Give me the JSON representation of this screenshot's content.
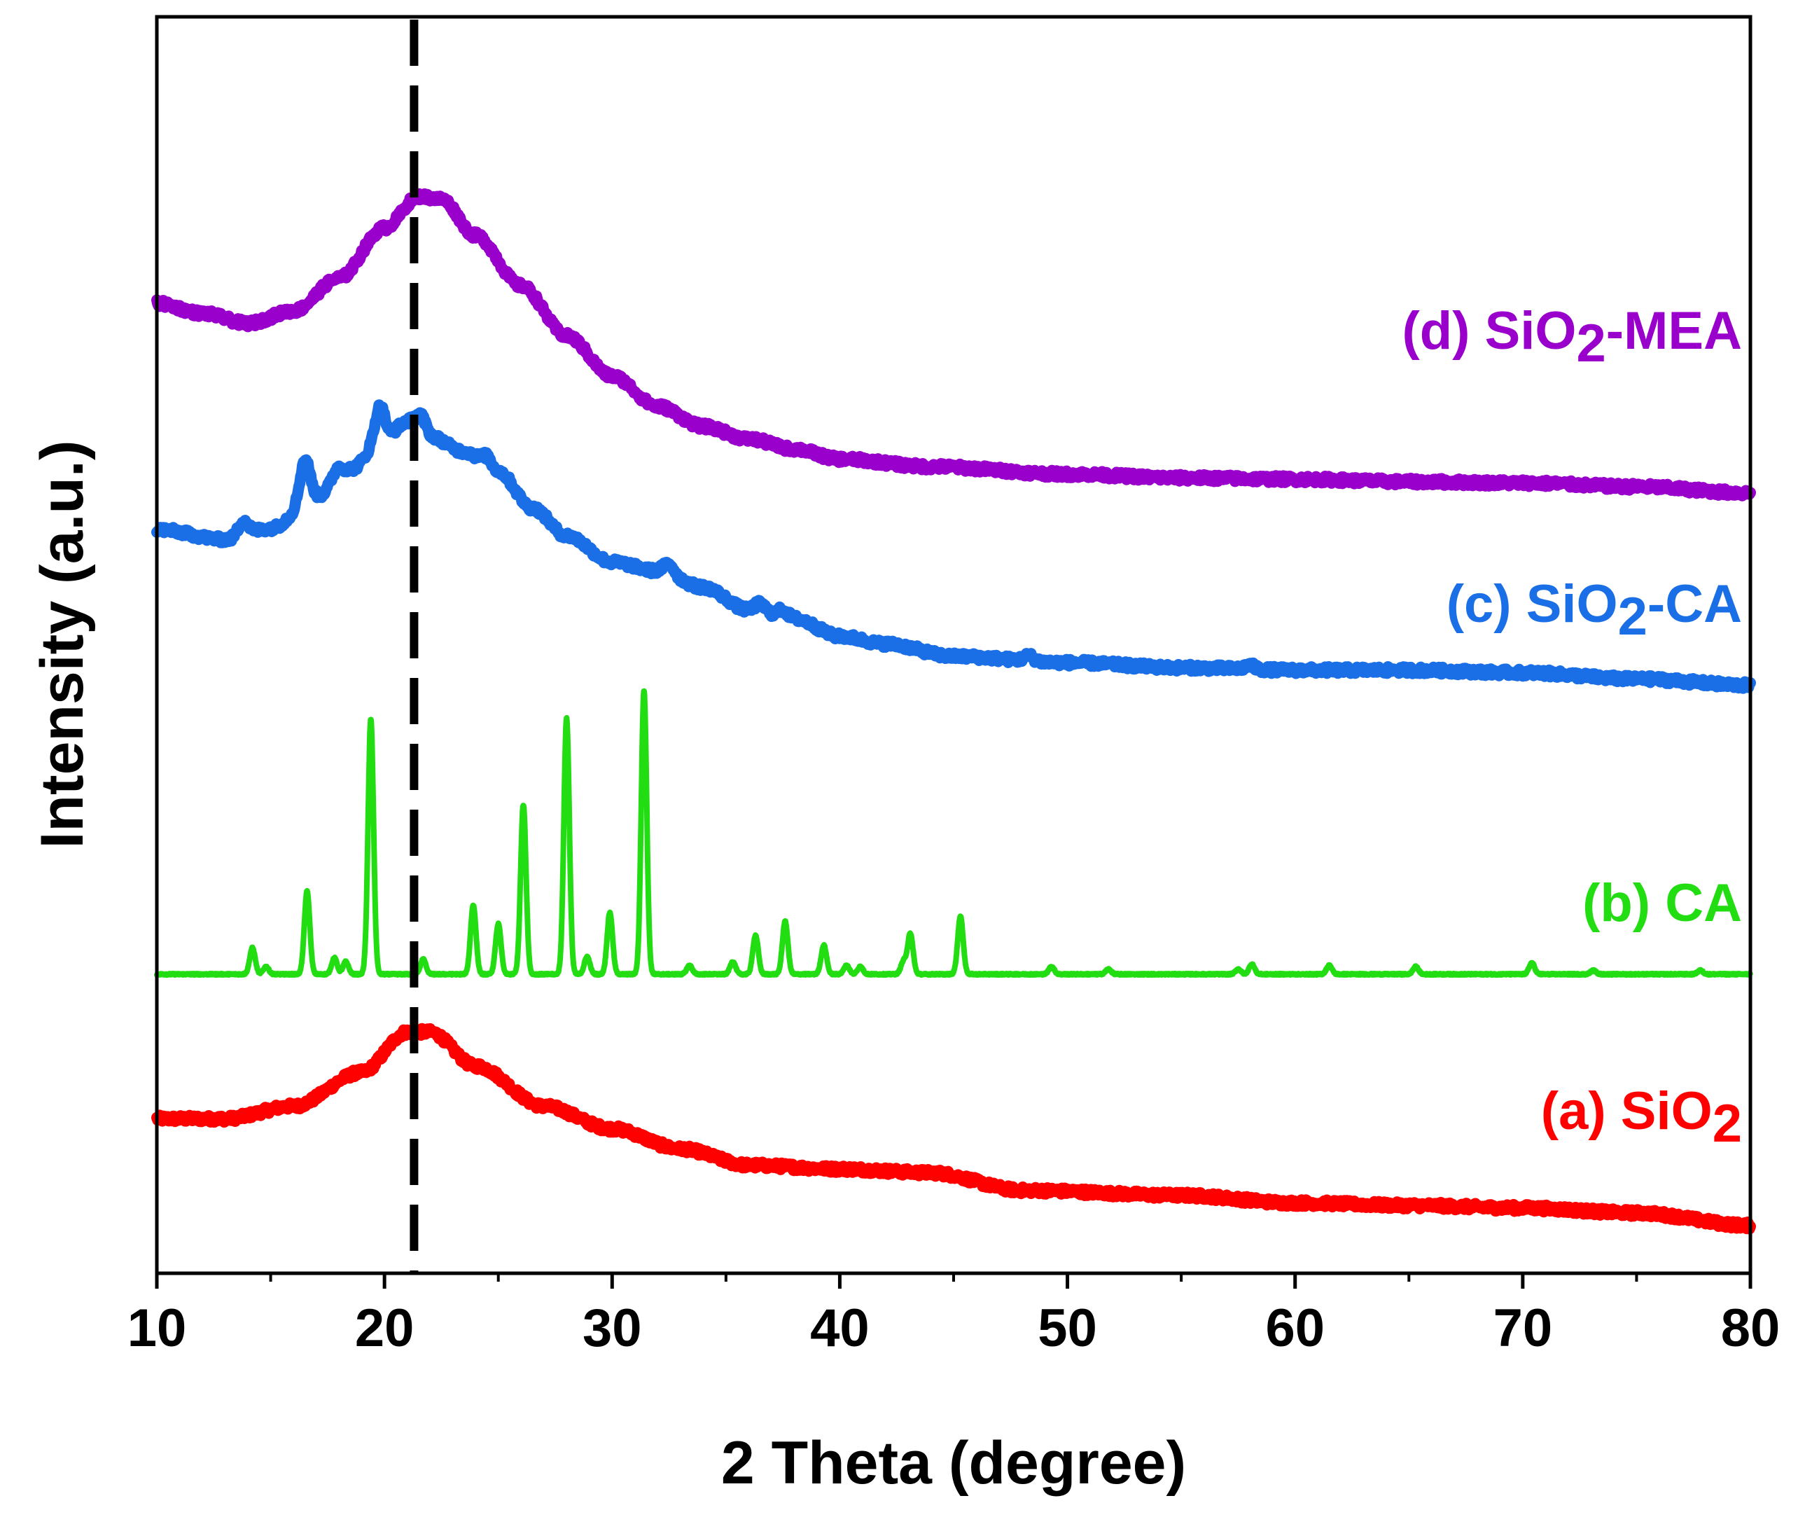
{
  "chart_data": {
    "type": "line",
    "title": "",
    "xlabel": "2 Theta (degree)",
    "ylabel": "Intensity (a.u.)",
    "xlim": [
      10,
      80
    ],
    "ylim": [
      0,
      100
    ],
    "y_ticks_shown": false,
    "grid": false,
    "xticks": [
      10,
      20,
      30,
      40,
      50,
      60,
      70,
      80
    ],
    "xtick_labels": [
      "10",
      "20",
      "30",
      "40",
      "50",
      "60",
      "70",
      "80"
    ],
    "reference_line": {
      "x": 21.3,
      "style": "dashed",
      "color": "#000000"
    },
    "series": [
      {
        "id": "a",
        "name": "(a) SiO",
        "subscript": "2",
        "suffix": "",
        "color": "#ff0000",
        "kind": "broad",
        "baseline": [
          [
            10,
            12.3
          ],
          [
            13,
            12.3
          ],
          [
            16,
            13.3
          ],
          [
            19,
            16.0
          ],
          [
            21,
            19.2
          ],
          [
            22,
            19.2
          ],
          [
            24,
            16.5
          ],
          [
            27,
            13.3
          ],
          [
            30,
            11.5
          ],
          [
            33,
            9.9
          ],
          [
            36,
            8.6
          ],
          [
            40,
            8.3
          ],
          [
            44,
            8.0
          ],
          [
            48,
            6.6
          ],
          [
            55,
            6.2
          ],
          [
            60,
            5.6
          ],
          [
            65,
            5.4
          ],
          [
            70,
            5.2
          ],
          [
            75,
            4.8
          ],
          [
            80,
            3.8
          ]
        ],
        "peaks": []
      },
      {
        "id": "b",
        "name": "(b) CA",
        "subscript": "",
        "suffix": "",
        "color": "#22dd11",
        "kind": "sharp",
        "baseline": [
          [
            10,
            23.8
          ],
          [
            80,
            23.8
          ]
        ],
        "peaks": [
          [
            14.2,
            2.1
          ],
          [
            14.8,
            0.6
          ],
          [
            16.6,
            6.6
          ],
          [
            17.8,
            1.3
          ],
          [
            18.3,
            1.0
          ],
          [
            19.4,
            20.3
          ],
          [
            21.7,
            1.2
          ],
          [
            23.9,
            5.5
          ],
          [
            25.0,
            4.0
          ],
          [
            26.1,
            13.5
          ],
          [
            28.0,
            20.4
          ],
          [
            28.9,
            1.4
          ],
          [
            29.9,
            4.9
          ],
          [
            31.4,
            22.6
          ],
          [
            33.4,
            0.7
          ],
          [
            35.3,
            1.0
          ],
          [
            36.3,
            3.1
          ],
          [
            37.6,
            4.2
          ],
          [
            39.3,
            2.3
          ],
          [
            40.3,
            0.7
          ],
          [
            40.9,
            0.6
          ],
          [
            42.8,
            1.0
          ],
          [
            43.1,
            3.2
          ],
          [
            45.3,
            4.6
          ],
          [
            49.3,
            0.6
          ],
          [
            51.8,
            0.4
          ],
          [
            57.5,
            0.4
          ],
          [
            58.1,
            0.8
          ],
          [
            61.5,
            0.7
          ],
          [
            65.3,
            0.6
          ],
          [
            70.4,
            0.9
          ],
          [
            73.1,
            0.3
          ],
          [
            77.8,
            0.3
          ]
        ]
      },
      {
        "id": "c",
        "name": "(c) SiO",
        "subscript": "2",
        "suffix": "-CA",
        "color": "#1a6ee6",
        "kind": "broad",
        "baseline": [
          [
            10,
            59.2
          ],
          [
            13,
            58.4
          ],
          [
            15,
            59.3
          ],
          [
            17,
            61.8
          ],
          [
            18.5,
            64.0
          ],
          [
            20,
            66.5
          ],
          [
            21,
            67.8
          ],
          [
            22,
            66.6
          ],
          [
            23.5,
            65.4
          ],
          [
            25,
            63.8
          ],
          [
            26.5,
            60.9
          ],
          [
            28,
            58.7
          ],
          [
            30,
            56.6
          ],
          [
            32,
            55.9
          ],
          [
            34,
            54.6
          ],
          [
            36,
            52.8
          ],
          [
            38,
            52.1
          ],
          [
            40,
            50.7
          ],
          [
            42,
            50.1
          ],
          [
            45,
            49.1
          ],
          [
            50,
            48.6
          ],
          [
            55,
            48.2
          ],
          [
            60,
            48.0
          ],
          [
            65,
            48.0
          ],
          [
            70,
            47.8
          ],
          [
            75,
            47.3
          ],
          [
            80,
            46.8
          ]
        ],
        "peaks": [
          [
            13.8,
            1.2
          ],
          [
            16.5,
            3.3
          ],
          [
            17.9,
            0.8
          ],
          [
            19.8,
            2.6
          ],
          [
            21.6,
            1.3
          ],
          [
            24.5,
            0.8
          ],
          [
            32.5,
            0.8
          ],
          [
            36.5,
            0.6
          ],
          [
            37.5,
            0.6
          ],
          [
            48.3,
            0.4
          ],
          [
            58.0,
            0.3
          ]
        ]
      },
      {
        "id": "d",
        "name": "(d) SiO",
        "subscript": "2",
        "suffix": "-MEA",
        "color": "#9900cc",
        "kind": "broad",
        "baseline": [
          [
            10,
            77.2
          ],
          [
            12,
            76.4
          ],
          [
            14,
            75.6
          ],
          [
            16,
            76.6
          ],
          [
            18,
            79.2
          ],
          [
            20,
            83.2
          ],
          [
            21.5,
            85.7
          ],
          [
            22.5,
            85.5
          ],
          [
            24,
            82.6
          ],
          [
            26,
            78.6
          ],
          [
            28,
            74.6
          ],
          [
            30,
            71.4
          ],
          [
            32,
            69.0
          ],
          [
            34,
            67.4
          ],
          [
            36,
            66.4
          ],
          [
            38,
            65.6
          ],
          [
            40,
            64.8
          ],
          [
            44,
            64.2
          ],
          [
            50,
            63.6
          ],
          [
            55,
            63.3
          ],
          [
            60,
            63.2
          ],
          [
            65,
            63.0
          ],
          [
            70,
            62.9
          ],
          [
            75,
            62.6
          ],
          [
            80,
            62.1
          ]
        ],
        "peaks": []
      }
    ]
  }
}
